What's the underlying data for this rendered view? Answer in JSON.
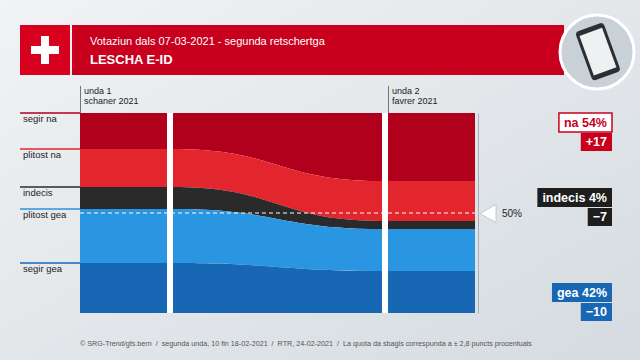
{
  "chart_data": {
    "type": "area",
    "stacked": true,
    "grid": true,
    "title": "LESCHA E-ID",
    "subtitle": "Votaziun dals 07-03-2021 - segunda retschertga",
    "categories": [
      "unda 1\nschaner 2021",
      "unda 2\nfavrer 2021"
    ],
    "series": [
      {
        "name": "segir na",
        "color": "#b1001c",
        "values": [
          18,
          34
        ]
      },
      {
        "name": "plitost na",
        "color": "#e3262d",
        "values": [
          19,
          20
        ]
      },
      {
        "name": "indecis",
        "color": "#2a2a2a",
        "values": [
          11,
          4
        ]
      },
      {
        "name": "plitost gea",
        "color": "#2a95e0",
        "values": [
          27,
          21
        ]
      },
      {
        "name": "segir gea",
        "color": "#1767b5",
        "values": [
          25,
          21
        ]
      }
    ],
    "ylim": [
      0,
      100
    ],
    "yticks": [
      {
        "value": 50,
        "label": "50%"
      }
    ],
    "annotations": [
      {
        "text": "na 54%",
        "change": "+17"
      },
      {
        "text": "indecis 4%",
        "change": "−7"
      },
      {
        "text": "gea 42%",
        "change": "−10"
      }
    ],
    "source": "© SRG-Trend/gfs.bern  /  segunda unda, 10 fin 18-02-2021  /  RTR, 24-02-2021  /  La quota da sbagls correspunda a ± 2,8 puncts procentuals"
  }
}
